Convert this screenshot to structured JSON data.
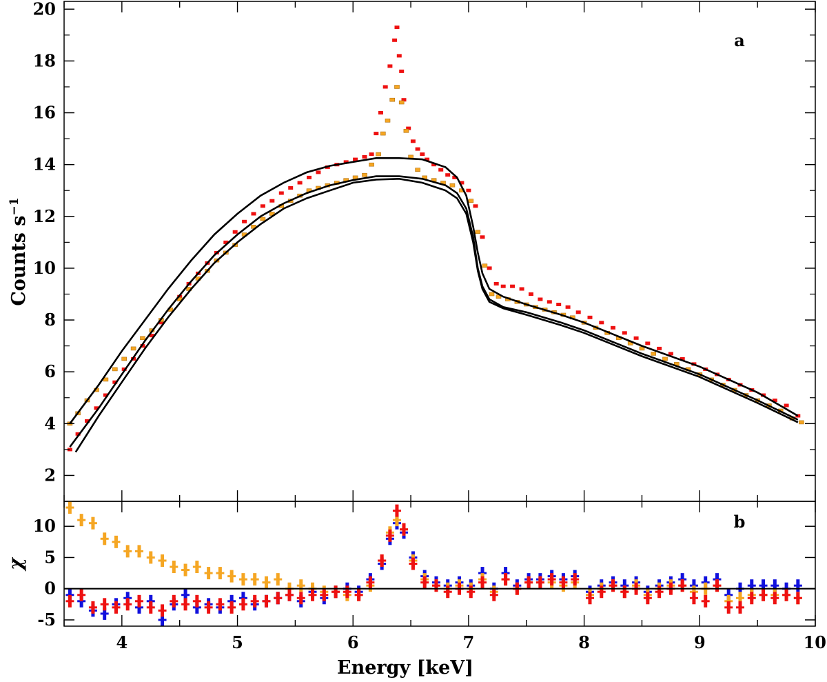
{
  "chart_data": [
    {
      "type": "scatter",
      "panel_label": "a",
      "ylabel": "Counts s",
      "ylabel_exp": "−1",
      "xlim": [
        3.5,
        10.0
      ],
      "ylim": [
        1.0,
        20.3
      ],
      "yticks": [
        "2",
        "4",
        "6",
        "8",
        "10",
        "12",
        "14",
        "16",
        "18",
        "20"
      ],
      "series": [
        {
          "name": "data-red",
          "color": "#ee1111",
          "marker": "dot",
          "x": [
            3.55,
            3.62,
            3.7,
            3.78,
            3.86,
            3.94,
            4.02,
            4.1,
            4.18,
            4.26,
            4.34,
            4.42,
            4.5,
            4.58,
            4.66,
            4.74,
            4.82,
            4.9,
            4.98,
            5.06,
            5.14,
            5.22,
            5.3,
            5.38,
            5.46,
            5.54,
            5.62,
            5.7,
            5.78,
            5.86,
            5.94,
            6.02,
            6.1,
            6.16,
            6.2,
            6.24,
            6.28,
            6.32,
            6.36,
            6.38,
            6.4,
            6.42,
            6.44,
            6.48,
            6.52,
            6.56,
            6.6,
            6.64,
            6.7,
            6.76,
            6.82,
            6.88,
            6.94,
            7.0,
            7.06,
            7.12,
            7.18,
            7.24,
            7.3,
            7.38,
            7.46,
            7.54,
            7.62,
            7.7,
            7.78,
            7.86,
            7.95,
            8.05,
            8.15,
            8.25,
            8.35,
            8.45,
            8.55,
            8.65,
            8.75,
            8.85,
            8.95,
            9.05,
            9.15,
            9.25,
            9.35,
            9.45,
            9.55,
            9.65,
            9.75,
            9.85
          ],
          "y": [
            3.0,
            3.6,
            4.1,
            4.6,
            5.1,
            5.6,
            6.1,
            6.5,
            7.0,
            7.4,
            7.9,
            8.4,
            8.9,
            9.4,
            9.8,
            10.2,
            10.6,
            11.0,
            11.4,
            11.8,
            12.1,
            12.4,
            12.6,
            12.9,
            13.1,
            13.3,
            13.5,
            13.7,
            13.9,
            14.0,
            14.1,
            14.2,
            14.3,
            14.4,
            15.2,
            16.0,
            17.0,
            17.8,
            18.8,
            19.3,
            18.2,
            17.6,
            16.5,
            15.4,
            14.9,
            14.6,
            14.4,
            14.2,
            14.0,
            13.8,
            13.6,
            13.5,
            13.3,
            13.0,
            12.4,
            11.2,
            10.0,
            9.4,
            9.3,
            9.3,
            9.2,
            9.0,
            8.8,
            8.7,
            8.6,
            8.5,
            8.3,
            8.1,
            7.9,
            7.7,
            7.5,
            7.3,
            7.1,
            6.9,
            6.7,
            6.5,
            6.3,
            6.1,
            5.9,
            5.7,
            5.5,
            5.3,
            5.1,
            4.9,
            4.7,
            4.3
          ]
        },
        {
          "name": "data-orange",
          "color": "#f5a623",
          "marker": "dot",
          "x": [
            3.55,
            3.62,
            3.7,
            3.78,
            3.86,
            3.94,
            4.02,
            4.1,
            4.18,
            4.26,
            4.34,
            4.42,
            4.5,
            4.58,
            4.66,
            4.74,
            4.82,
            4.9,
            4.98,
            5.06,
            5.14,
            5.22,
            5.3,
            5.38,
            5.46,
            5.54,
            5.62,
            5.7,
            5.78,
            5.86,
            5.94,
            6.02,
            6.1,
            6.16,
            6.22,
            6.26,
            6.3,
            6.34,
            6.38,
            6.42,
            6.46,
            6.5,
            6.56,
            6.62,
            6.7,
            6.78,
            6.86,
            6.94,
            7.02,
            7.08,
            7.14,
            7.2,
            7.26,
            7.34,
            7.42,
            7.5,
            7.58,
            7.66,
            7.74,
            7.82,
            7.9,
            8.0,
            8.1,
            8.2,
            8.3,
            8.4,
            8.5,
            8.6,
            8.7,
            8.8,
            8.9,
            9.0,
            9.1,
            9.2,
            9.3,
            9.4,
            9.5,
            9.6,
            9.7,
            9.8,
            9.88
          ],
          "y": [
            4.0,
            4.4,
            4.9,
            5.3,
            5.7,
            6.1,
            6.5,
            6.9,
            7.3,
            7.6,
            8.0,
            8.4,
            8.8,
            9.2,
            9.6,
            9.9,
            10.3,
            10.6,
            10.9,
            11.3,
            11.6,
            11.9,
            12.1,
            12.4,
            12.6,
            12.8,
            13.0,
            13.1,
            13.2,
            13.3,
            13.4,
            13.5,
            13.6,
            14.0,
            14.4,
            15.2,
            15.7,
            16.5,
            17.0,
            16.4,
            15.3,
            14.3,
            13.8,
            13.5,
            13.4,
            13.3,
            13.2,
            13.0,
            12.6,
            11.4,
            10.1,
            9.0,
            8.9,
            8.8,
            8.7,
            8.6,
            8.5,
            8.4,
            8.3,
            8.2,
            8.1,
            7.9,
            7.7,
            7.5,
            7.3,
            7.1,
            6.9,
            6.7,
            6.5,
            6.3,
            6.1,
            5.9,
            5.7,
            5.5,
            5.3,
            5.1,
            4.9,
            4.7,
            4.5,
            4.2,
            4.05
          ]
        },
        {
          "name": "model-1",
          "color": "#000000",
          "marker": "line",
          "x": [
            3.55,
            3.8,
            4.0,
            4.2,
            4.4,
            4.6,
            4.8,
            5.0,
            5.2,
            5.4,
            5.6,
            5.8,
            6.0,
            6.2,
            6.4,
            6.6,
            6.8,
            6.9,
            6.98,
            7.04,
            7.08,
            7.12,
            7.18,
            7.3,
            7.5,
            7.8,
            8.0,
            8.5,
            9.0,
            9.5,
            9.85
          ],
          "y": [
            4.0,
            5.5,
            6.8,
            8.0,
            9.2,
            10.3,
            11.3,
            12.1,
            12.8,
            13.3,
            13.7,
            13.95,
            14.1,
            14.25,
            14.25,
            14.2,
            13.9,
            13.5,
            12.8,
            11.6,
            10.6,
            9.8,
            9.2,
            8.9,
            8.6,
            8.2,
            7.9,
            7.0,
            6.2,
            5.2,
            4.3
          ]
        },
        {
          "name": "model-2",
          "color": "#000000",
          "marker": "line",
          "x": [
            3.55,
            3.8,
            4.0,
            4.2,
            4.4,
            4.6,
            4.8,
            5.0,
            5.2,
            5.4,
            5.6,
            5.8,
            6.0,
            6.2,
            6.4,
            6.6,
            6.8,
            6.9,
            6.98,
            7.04,
            7.08,
            7.12,
            7.18,
            7.3,
            7.5,
            7.8,
            8.0,
            8.5,
            9.0,
            9.5,
            9.85
          ],
          "y": [
            3.1,
            4.6,
            5.9,
            7.2,
            8.4,
            9.5,
            10.5,
            11.3,
            12.0,
            12.5,
            12.9,
            13.2,
            13.4,
            13.55,
            13.55,
            13.45,
            13.2,
            12.9,
            12.3,
            11.2,
            10.0,
            9.3,
            8.8,
            8.5,
            8.3,
            7.9,
            7.6,
            6.7,
            5.9,
            4.9,
            4.15
          ]
        },
        {
          "name": "model-3",
          "color": "#000000",
          "marker": "line",
          "x": [
            3.6,
            3.8,
            4.0,
            4.2,
            4.4,
            4.6,
            4.8,
            5.0,
            5.2,
            5.4,
            5.6,
            5.8,
            6.0,
            6.2,
            6.4,
            6.6,
            6.8,
            6.9,
            6.98,
            7.04,
            7.08,
            7.12,
            7.18,
            7.3,
            7.5,
            7.8,
            8.0,
            8.5,
            9.0,
            9.5,
            9.85
          ],
          "y": [
            2.9,
            4.3,
            5.6,
            6.9,
            8.1,
            9.2,
            10.2,
            11.0,
            11.7,
            12.3,
            12.7,
            13.0,
            13.3,
            13.42,
            13.45,
            13.3,
            13.0,
            12.7,
            12.1,
            11.0,
            9.9,
            9.2,
            8.7,
            8.45,
            8.2,
            7.8,
            7.5,
            6.6,
            5.8,
            4.8,
            4.05
          ]
        }
      ]
    },
    {
      "type": "scatter",
      "panel_label": "b",
      "ylabel": "χ",
      "xlabel": "Energy [keV]",
      "xlim": [
        3.5,
        10.0
      ],
      "ylim": [
        -6.0,
        14.0
      ],
      "xticks": [
        "4",
        "5",
        "6",
        "7",
        "8",
        "9",
        "10"
      ],
      "yticks": [
        "-5",
        "0",
        "5",
        "10"
      ],
      "zero_line": 0,
      "series": [
        {
          "name": "resid-blue",
          "color": "#1111dd",
          "x": [
            3.55,
            3.65,
            3.75,
            3.85,
            3.95,
            4.05,
            4.15,
            4.25,
            4.35,
            4.45,
            4.55,
            4.65,
            4.75,
            4.85,
            4.95,
            5.05,
            5.15,
            5.25,
            5.35,
            5.45,
            5.55,
            5.65,
            5.75,
            5.85,
            5.95,
            6.05,
            6.15,
            6.25,
            6.32,
            6.38,
            6.44,
            6.52,
            6.62,
            6.72,
            6.82,
            6.92,
            7.02,
            7.12,
            7.22,
            7.32,
            7.42,
            7.52,
            7.62,
            7.72,
            7.82,
            7.92,
            8.05,
            8.15,
            8.25,
            8.35,
            8.45,
            8.55,
            8.65,
            8.75,
            8.85,
            8.95,
            9.05,
            9.15,
            9.25,
            9.35,
            9.45,
            9.55,
            9.65,
            9.75,
            9.85
          ],
          "y": [
            -1.0,
            -2.0,
            -3.5,
            -4.0,
            -2.5,
            -1.5,
            -3.0,
            -2.0,
            -5.0,
            -2.5,
            -1.0,
            -3.0,
            -2.5,
            -3.0,
            -2.0,
            -1.5,
            -2.5,
            -2.0,
            -1.5,
            -1.0,
            -2.0,
            -0.5,
            -1.5,
            -0.5,
            0.0,
            -0.5,
            1.5,
            4.0,
            8.0,
            10.5,
            9.0,
            5.0,
            2.0,
            1.0,
            0.5,
            1.0,
            0.5,
            2.5,
            0.0,
            2.5,
            0.5,
            1.5,
            1.5,
            2.0,
            1.5,
            2.0,
            -0.5,
            0.5,
            1.0,
            0.5,
            1.0,
            -0.5,
            0.5,
            1.0,
            1.5,
            0.5,
            1.0,
            1.5,
            -1.0,
            0.0,
            0.5,
            0.5,
            0.5,
            0.0,
            0.5
          ]
        },
        {
          "name": "resid-orange",
          "color": "#f5a623",
          "x": [
            3.55,
            3.65,
            3.75,
            3.85,
            3.95,
            4.05,
            4.15,
            4.25,
            4.35,
            4.45,
            4.55,
            4.65,
            4.75,
            4.85,
            4.95,
            5.05,
            5.15,
            5.25,
            5.35,
            5.45,
            5.55,
            5.65,
            5.75,
            5.85,
            5.95,
            6.05,
            6.15,
            6.25,
            6.32,
            6.38,
            6.44,
            6.52,
            6.62,
            6.72,
            6.82,
            6.92,
            7.02,
            7.12,
            7.22,
            7.32,
            7.42,
            7.52,
            7.62,
            7.72,
            7.82,
            7.92,
            8.05,
            8.15,
            8.25,
            8.35,
            8.45,
            8.55,
            8.65,
            8.75,
            8.85,
            8.95,
            9.05,
            9.15,
            9.25,
            9.35,
            9.45,
            9.55,
            9.65,
            9.75,
            9.85
          ],
          "y": [
            13.0,
            11.0,
            10.5,
            8.0,
            7.5,
            6.0,
            6.0,
            5.0,
            4.5,
            3.5,
            3.0,
            3.5,
            2.5,
            2.5,
            2.0,
            1.5,
            1.5,
            1.0,
            1.5,
            0.0,
            0.5,
            0.0,
            -0.5,
            -0.5,
            -1.0,
            -1.0,
            0.5,
            4.5,
            9.0,
            11.0,
            9.5,
            4.5,
            1.5,
            0.5,
            0.0,
            0.5,
            0.0,
            1.5,
            -0.5,
            1.5,
            0.0,
            1.0,
            1.0,
            1.0,
            0.5,
            1.0,
            -1.0,
            0.0,
            0.5,
            -0.5,
            0.5,
            -1.0,
            0.0,
            0.5,
            0.5,
            -0.5,
            0.0,
            0.5,
            -2.0,
            -1.5,
            -1.0,
            -1.0,
            -1.0,
            -1.0,
            -1.5
          ]
        },
        {
          "name": "resid-red",
          "color": "#ee1111",
          "x": [
            3.55,
            3.65,
            3.75,
            3.85,
            3.95,
            4.05,
            4.15,
            4.25,
            4.35,
            4.45,
            4.55,
            4.65,
            4.75,
            4.85,
            4.95,
            5.05,
            5.15,
            5.25,
            5.35,
            5.45,
            5.55,
            5.65,
            5.75,
            5.85,
            5.95,
            6.05,
            6.15,
            6.25,
            6.32,
            6.38,
            6.44,
            6.52,
            6.62,
            6.72,
            6.82,
            6.92,
            7.02,
            7.12,
            7.22,
            7.32,
            7.42,
            7.52,
            7.62,
            7.72,
            7.82,
            7.92,
            8.05,
            8.15,
            8.25,
            8.35,
            8.45,
            8.55,
            8.65,
            8.75,
            8.85,
            8.95,
            9.05,
            9.15,
            9.25,
            9.35,
            9.45,
            9.55,
            9.65,
            9.75,
            9.85
          ],
          "y": [
            -2.0,
            -1.0,
            -3.0,
            -2.5,
            -3.0,
            -2.5,
            -2.0,
            -3.0,
            -3.5,
            -2.0,
            -2.5,
            -2.0,
            -3.0,
            -2.5,
            -3.0,
            -2.5,
            -2.0,
            -2.0,
            -1.5,
            -1.0,
            -1.5,
            -1.0,
            -1.0,
            -0.5,
            -0.5,
            -1.0,
            1.0,
            4.5,
            8.5,
            12.5,
            9.5,
            4.0,
            1.0,
            0.5,
            -0.5,
            0.0,
            -0.5,
            1.0,
            -1.0,
            1.5,
            0.0,
            1.0,
            1.0,
            1.5,
            1.0,
            1.5,
            -1.5,
            -0.5,
            0.5,
            -0.5,
            0.0,
            -1.5,
            -0.5,
            0.0,
            0.5,
            -1.5,
            -2.0,
            0.5,
            -3.0,
            -3.0,
            -1.5,
            -1.0,
            -1.5,
            -1.0,
            -1.5
          ]
        }
      ]
    }
  ]
}
